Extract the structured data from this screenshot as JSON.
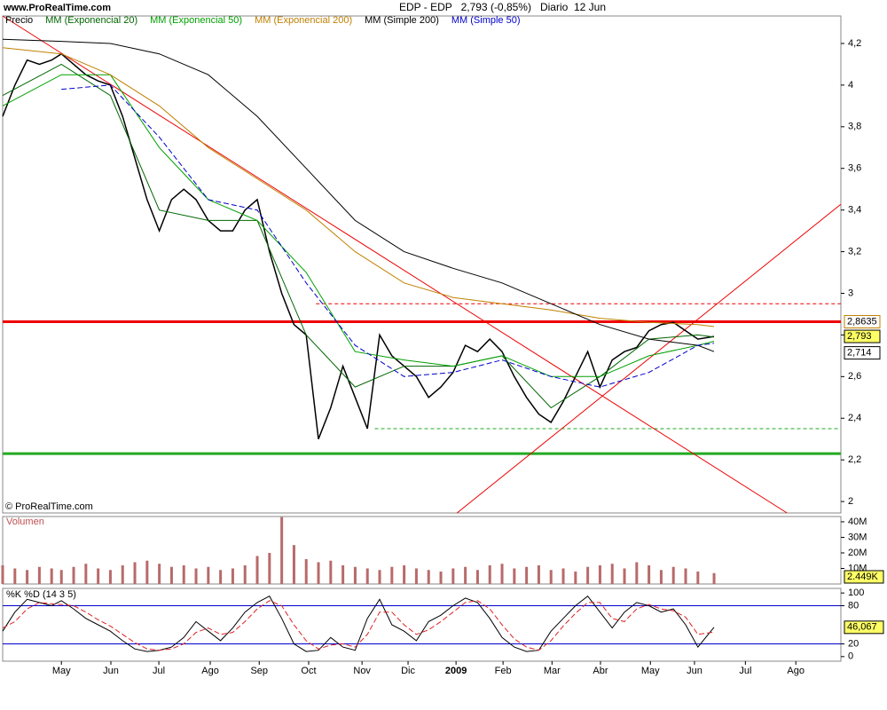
{
  "header": {
    "site": "www.ProRealTime.com"
  },
  "chart_data": [
    {
      "type": "line",
      "title": "EDP - EDP   2,793 (-0,85%)   Diario  12 Jun",
      "source": "© ProRealTime.com",
      "xlim": [
        -1.2,
        15.92
      ],
      "ylim": [
        1.945,
        4.332
      ],
      "xticks": [
        {
          "value": 0,
          "label": "May"
        },
        {
          "value": 1.01,
          "label": "Jun"
        },
        {
          "value": 1.99,
          "label": "Jul"
        },
        {
          "value": 3.04,
          "label": "Ago"
        },
        {
          "value": 4.04,
          "label": "Sep"
        },
        {
          "value": 5.05,
          "label": "Oct"
        },
        {
          "value": 6.14,
          "label": "Nov"
        },
        {
          "value": 7.08,
          "label": "Dic"
        },
        {
          "value": 8.06,
          "label": "2009",
          "bold": true
        },
        {
          "value": 9.02,
          "label": "Feb"
        },
        {
          "value": 10.02,
          "label": "Mar"
        },
        {
          "value": 11.01,
          "label": "Abr"
        },
        {
          "value": 12.03,
          "label": "May"
        },
        {
          "value": 12.93,
          "label": "Jun"
        },
        {
          "value": 13.97,
          "label": "Jul"
        },
        {
          "value": 15,
          "label": "Ago"
        }
      ],
      "yticks": [
        {
          "value": 2,
          "label": "2"
        },
        {
          "value": 2.2,
          "label": "2,2"
        },
        {
          "value": 2.4,
          "label": "2,4"
        },
        {
          "value": 2.6,
          "label": "2,6"
        },
        {
          "value": 2.8,
          "label": "2,8"
        },
        {
          "value": 3,
          "label": "3"
        },
        {
          "value": 3.2,
          "label": "3,2"
        },
        {
          "value": 3.4,
          "label": "3,4"
        },
        {
          "value": 3.6,
          "label": "3,6"
        },
        {
          "value": 3.8,
          "label": "3,8"
        },
        {
          "value": 4,
          "label": "4"
        },
        {
          "value": 4.2,
          "label": "4,2"
        }
      ],
      "series": [
        {
          "name": "Precio",
          "color": "#000000",
          "x": [
            -1.2,
            -0.95,
            -0.7,
            -0.45,
            -0.2,
            0,
            0.25,
            0.5,
            0.75,
            1,
            1.25,
            1.5,
            1.75,
            2,
            2.25,
            2.5,
            2.75,
            3,
            3.25,
            3.5,
            3.75,
            4,
            4.25,
            4.5,
            4.75,
            5,
            5.25,
            5.5,
            5.75,
            6,
            6.25,
            6.5,
            6.75,
            7,
            7.25,
            7.5,
            7.75,
            8,
            8.25,
            8.5,
            8.75,
            9,
            9.25,
            9.5,
            9.75,
            10,
            10.25,
            10.5,
            10.75,
            11,
            11.25,
            11.5,
            11.75,
            12,
            12.25,
            12.5,
            12.75,
            13,
            13.33
          ],
          "values": [
            3.85,
            4.0,
            4.12,
            4.1,
            4.12,
            4.15,
            4.1,
            4.05,
            4.02,
            4.0,
            3.85,
            3.65,
            3.45,
            3.3,
            3.45,
            3.5,
            3.45,
            3.35,
            3.3,
            3.3,
            3.4,
            3.45,
            3.2,
            3.0,
            2.85,
            2.8,
            2.3,
            2.45,
            2.65,
            2.5,
            2.35,
            2.8,
            2.7,
            2.65,
            2.6,
            2.5,
            2.55,
            2.62,
            2.75,
            2.72,
            2.78,
            2.72,
            2.6,
            2.5,
            2.42,
            2.38,
            2.48,
            2.6,
            2.72,
            2.55,
            2.68,
            2.72,
            2.74,
            2.82,
            2.85,
            2.86,
            2.82,
            2.78,
            2.793
          ]
        },
        {
          "name": "MM (Exponencial 20)",
          "color": "#006600",
          "x": [
            -1.2,
            0,
            1,
            2,
            3,
            4,
            5,
            6,
            7,
            8,
            9,
            10,
            11,
            12,
            13,
            13.33
          ],
          "values": [
            3.95,
            4.1,
            3.95,
            3.4,
            3.35,
            3.35,
            2.8,
            2.55,
            2.65,
            2.65,
            2.7,
            2.45,
            2.6,
            2.78,
            2.8,
            2.79
          ]
        },
        {
          "name": "MM (Exponencial 50)",
          "color": "#00a000",
          "x": [
            -1.2,
            0,
            1,
            2,
            3,
            4,
            5,
            6,
            7,
            8,
            9,
            10,
            11,
            12,
            13,
            13.33
          ],
          "values": [
            3.9,
            4.05,
            4.05,
            3.7,
            3.45,
            3.35,
            3.1,
            2.72,
            2.68,
            2.65,
            2.7,
            2.6,
            2.6,
            2.7,
            2.75,
            2.77
          ]
        },
        {
          "name": "MM (Exponencial 200)",
          "color": "#c08000",
          "x": [
            -1.2,
            0,
            1,
            2,
            3,
            4,
            5,
            6,
            7,
            8,
            9,
            10,
            11,
            12,
            13,
            13.33
          ],
          "values": [
            4.18,
            4.15,
            4.05,
            3.9,
            3.7,
            3.55,
            3.4,
            3.2,
            3.05,
            2.98,
            2.95,
            2.92,
            2.88,
            2.86,
            2.85,
            2.84
          ]
        },
        {
          "name": "MM (Simple 200)",
          "color": "#000000",
          "x": [
            -1.2,
            0,
            1,
            2,
            3,
            4,
            5,
            6,
            7,
            8,
            9,
            10,
            11,
            12,
            13,
            13.33
          ],
          "values": [
            4.22,
            4.21,
            4.2,
            4.15,
            4.05,
            3.85,
            3.6,
            3.35,
            3.2,
            3.12,
            3.05,
            2.95,
            2.85,
            2.78,
            2.75,
            2.72
          ]
        },
        {
          "name": "MM (Simple 50)",
          "color": "#0000cc",
          "dashed": true,
          "x": [
            -1.2,
            0,
            1,
            2,
            3,
            4,
            5,
            6,
            7,
            8,
            9,
            10,
            11,
            12,
            13,
            13.33
          ],
          "values": [
            null,
            3.98,
            4.0,
            3.75,
            3.45,
            3.4,
            3.05,
            2.75,
            2.6,
            2.62,
            2.68,
            2.6,
            2.55,
            2.62,
            2.75,
            2.76
          ]
        }
      ],
      "hlines": [
        {
          "value": 2.8635,
          "color": "#ee0000",
          "width": 3
        },
        {
          "value": 2.23,
          "color": "#22aa22",
          "width": 3
        },
        {
          "value": 2.95,
          "color": "#ee0000",
          "width": 1,
          "dashed": true,
          "from": 5.2
        },
        {
          "value": 2.35,
          "color": "#22aa22",
          "width": 1,
          "dashed": true,
          "from": 6.4
        }
      ],
      "trendlines": [
        {
          "x": [
            -1.2,
            14.82
          ],
          "y": [
            4.332,
            1.945
          ],
          "color": "#ee0000"
        },
        {
          "x": [
            8.08,
            15.92
          ],
          "y": [
            1.945,
            3.428
          ],
          "color": "#ee0000"
        }
      ],
      "price_labels": [
        {
          "value": 2.8635,
          "label": "2,8635",
          "color": "#ffffff",
          "border": "#c08000"
        },
        {
          "value": 2.793,
          "label": "2,793",
          "color": "#ffff66",
          "border": "#000000"
        },
        {
          "value": 2.714,
          "label": "2,714",
          "color": "#ffffff",
          "border": "#000000"
        }
      ]
    },
    {
      "type": "bar",
      "title": "Volumen",
      "ylim": [
        0,
        43.4
      ],
      "yticks": [
        {
          "value": 10,
          "label": "10M"
        },
        {
          "value": 20,
          "label": "20M"
        },
        {
          "value": 30,
          "label": "30M"
        },
        {
          "value": 40,
          "label": "40M"
        }
      ],
      "x": [
        -1.2,
        -0.95,
        -0.7,
        -0.45,
        -0.2,
        0,
        0.25,
        0.5,
        0.75,
        1,
        1.25,
        1.5,
        1.75,
        2,
        2.25,
        2.5,
        2.75,
        3,
        3.25,
        3.5,
        3.75,
        4,
        4.25,
        4.5,
        4.75,
        5,
        5.25,
        5.5,
        5.75,
        6,
        6.25,
        6.5,
        6.75,
        7,
        7.25,
        7.5,
        7.75,
        8,
        8.25,
        8.5,
        8.75,
        9,
        9.25,
        9.5,
        9.75,
        10,
        10.25,
        10.5,
        10.75,
        11,
        11.25,
        11.5,
        11.75,
        12,
        12.25,
        12.5,
        12.75,
        13,
        13.33
      ],
      "values": [
        12,
        10,
        9,
        11,
        10,
        9,
        11,
        13,
        10,
        9,
        12,
        14,
        15,
        13,
        11,
        12,
        10,
        11,
        9,
        10,
        12,
        18,
        20,
        43,
        25,
        16,
        14,
        15,
        12,
        11,
        10,
        9,
        11,
        12,
        10,
        9,
        8,
        10,
        11,
        9,
        12,
        13,
        10,
        11,
        12,
        9,
        10,
        8,
        11,
        12,
        13,
        10,
        14,
        12,
        9,
        11,
        10,
        8,
        7
      ],
      "color": "#b86a6a",
      "last_label": {
        "value": 0.002449,
        "label": "2.449K"
      }
    },
    {
      "type": "line",
      "title": "%K %D (14 3 5)",
      "ylim": [
        -7.2,
        107.2
      ],
      "yticks": [
        0,
        20,
        80,
        100
      ],
      "hlines": [
        {
          "value": 80,
          "color": "#0000cc",
          "width": 1
        },
        {
          "value": 20,
          "color": "#0000cc",
          "width": 1
        }
      ],
      "series": [
        {
          "color": "#000000",
          "x": [
            -1.2,
            -0.95,
            -0.7,
            -0.45,
            -0.2,
            0,
            0.25,
            0.5,
            0.75,
            1,
            1.25,
            1.5,
            1.75,
            2,
            2.25,
            2.5,
            2.75,
            3,
            3.25,
            3.5,
            3.75,
            4,
            4.25,
            4.5,
            4.75,
            5,
            5.25,
            5.5,
            5.75,
            6,
            6.25,
            6.5,
            6.75,
            7,
            7.25,
            7.5,
            7.75,
            8,
            8.25,
            8.5,
            8.75,
            9,
            9.25,
            9.5,
            9.75,
            10,
            10.25,
            10.5,
            10.75,
            11,
            11.25,
            11.5,
            11.75,
            12,
            12.25,
            12.5,
            12.75,
            13,
            13.33
          ],
          "values": [
            40,
            70,
            90,
            85,
            80,
            88,
            75,
            60,
            50,
            40,
            25,
            12,
            8,
            10,
            15,
            30,
            55,
            40,
            25,
            45,
            70,
            85,
            95,
            60,
            20,
            8,
            10,
            30,
            15,
            10,
            60,
            90,
            50,
            40,
            25,
            55,
            65,
            80,
            92,
            85,
            60,
            30,
            15,
            8,
            10,
            40,
            60,
            80,
            95,
            70,
            45,
            70,
            85,
            80,
            70,
            75,
            50,
            15,
            46.067
          ]
        },
        {
          "color": "#dd2222",
          "dashed": true,
          "x": [
            -1.2,
            -0.95,
            -0.7,
            -0.45,
            -0.2,
            0,
            0.25,
            0.5,
            0.75,
            1,
            1.25,
            1.5,
            1.75,
            2,
            2.25,
            2.5,
            2.75,
            3,
            3.25,
            3.5,
            3.75,
            4,
            4.25,
            4.5,
            4.75,
            5,
            5.25,
            5.5,
            5.75,
            6,
            6.25,
            6.5,
            6.75,
            7,
            7.25,
            7.5,
            7.75,
            8,
            8.25,
            8.5,
            8.75,
            9,
            9.25,
            9.5,
            9.75,
            10,
            10.25,
            10.5,
            10.75,
            11,
            11.25,
            11.5,
            11.75,
            12,
            12.25,
            12.5,
            12.75,
            13,
            13.33
          ],
          "values": [
            45,
            55,
            75,
            85,
            83,
            82,
            80,
            70,
            58,
            48,
            35,
            22,
            12,
            10,
            12,
            20,
            38,
            45,
            35,
            38,
            55,
            75,
            88,
            80,
            50,
            25,
            12,
            18,
            20,
            15,
            35,
            70,
            70,
            50,
            35,
            42,
            55,
            70,
            85,
            88,
            75,
            50,
            28,
            15,
            10,
            25,
            48,
            68,
            85,
            85,
            60,
            55,
            75,
            82,
            75,
            72,
            62,
            35,
            38.5
          ]
        }
      ],
      "last_label": {
        "value": 46.067,
        "label": "46,067"
      }
    }
  ]
}
